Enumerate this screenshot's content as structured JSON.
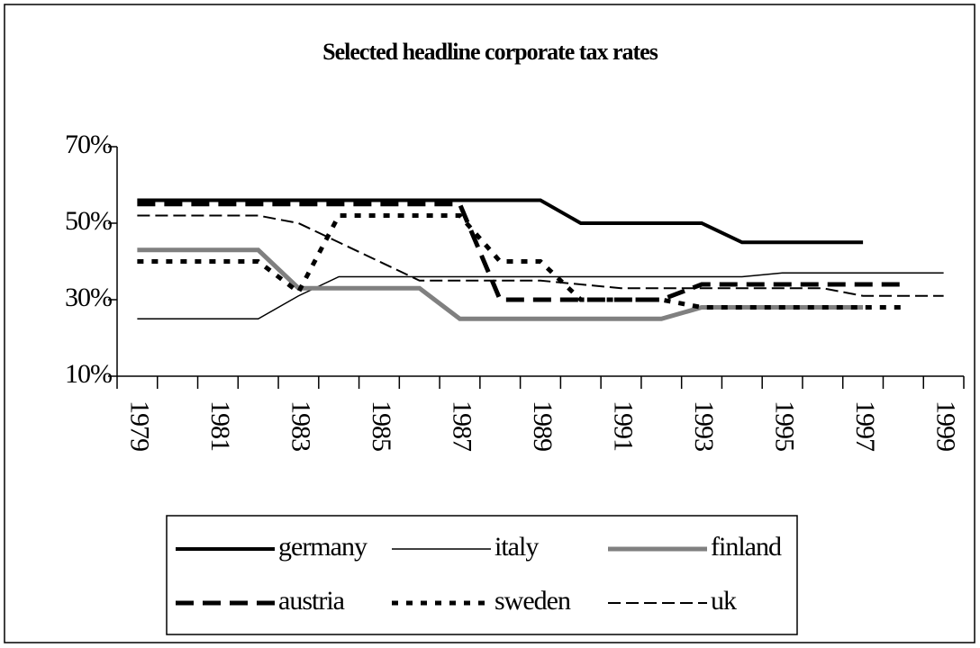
{
  "chart_data": {
    "type": "line",
    "title": "Selected headline corporate tax rates",
    "categories": [
      "1979",
      null,
      "1981",
      null,
      "1983",
      null,
      "1985",
      null,
      "1987",
      null,
      "1989",
      null,
      "1991",
      null,
      "1993",
      null,
      "1995",
      null,
      "1997",
      null,
      "1999"
    ],
    "ylim": [
      10,
      70
    ],
    "yticks": [
      {
        "value": 10,
        "label": "10%"
      },
      {
        "value": 30,
        "label": "30%"
      },
      {
        "value": 50,
        "label": "50%"
      },
      {
        "value": 70,
        "label": "70%"
      }
    ],
    "series": [
      {
        "name": "germany",
        "color": "#000000",
        "values": [
          56,
          56,
          56,
          56,
          56,
          56,
          56,
          56,
          56,
          56,
          56,
          50,
          50,
          50,
          50,
          45,
          45,
          45,
          45,
          null,
          null
        ]
      },
      {
        "name": "italy",
        "color": "#000000",
        "values": [
          25,
          25,
          25,
          25,
          31,
          36,
          36,
          36,
          36,
          36,
          36,
          36,
          36,
          36,
          36,
          36,
          37,
          37,
          37,
          37,
          37
        ]
      },
      {
        "name": "finland",
        "color": "#808080",
        "values": [
          43,
          43,
          43,
          43,
          33,
          33,
          33,
          33,
          25,
          25,
          25,
          25,
          25,
          25,
          28,
          28,
          28,
          28,
          28,
          null,
          null
        ]
      },
      {
        "name": "austria",
        "color": "#000000",
        "values": [
          55,
          55,
          55,
          55,
          55,
          55,
          55,
          55,
          55,
          30,
          30,
          30,
          30,
          30,
          34,
          34,
          34,
          34,
          34,
          34,
          null
        ]
      },
      {
        "name": "sweden",
        "color": "#000000",
        "values": [
          40,
          40,
          40,
          40,
          32,
          52,
          52,
          52,
          52,
          40,
          40,
          30,
          30,
          30,
          28,
          28,
          28,
          28,
          28,
          28,
          null
        ]
      },
      {
        "name": "uk",
        "color": "#000000",
        "values": [
          52,
          52,
          52,
          52,
          50,
          45,
          40,
          35,
          35,
          35,
          35,
          34,
          33,
          33,
          33,
          33,
          33,
          33,
          31,
          31,
          31
        ]
      }
    ]
  }
}
